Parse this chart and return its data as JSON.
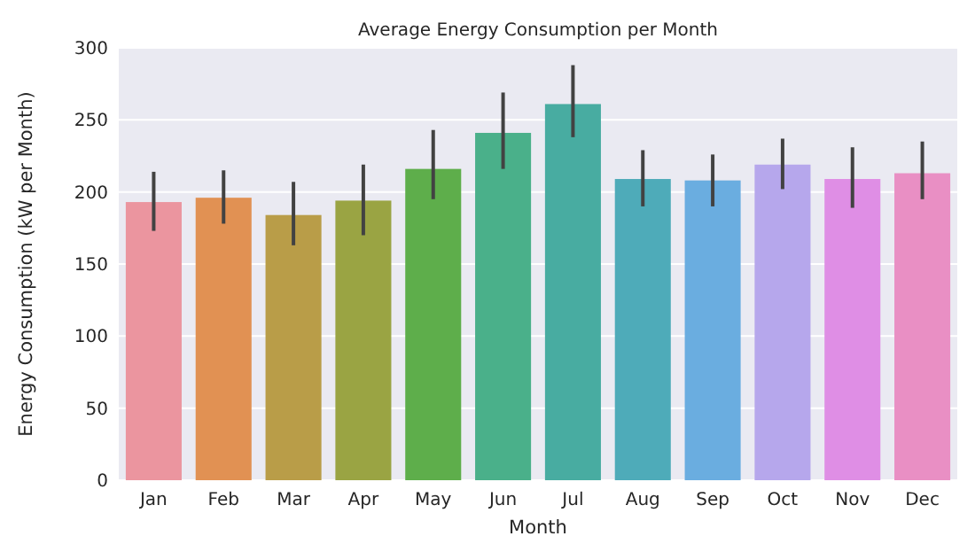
{
  "chart_data": {
    "type": "bar",
    "title": "Average Energy Consumption per Month",
    "xlabel": "Month",
    "ylabel": "Energy Consumption (kW per Month)",
    "categories": [
      "Jan",
      "Feb",
      "Mar",
      "Apr",
      "May",
      "Jun",
      "Jul",
      "Aug",
      "Sep",
      "Oct",
      "Nov",
      "Dec"
    ],
    "values": [
      193,
      196,
      184,
      194,
      216,
      241,
      261,
      209,
      208,
      219,
      209,
      213
    ],
    "errors": [
      [
        173,
        214
      ],
      [
        178,
        215
      ],
      [
        163,
        207
      ],
      [
        170,
        219
      ],
      [
        195,
        243
      ],
      [
        216,
        269
      ],
      [
        238,
        288
      ],
      [
        190,
        229
      ],
      [
        190,
        226
      ],
      [
        202,
        237
      ],
      [
        189,
        231
      ],
      [
        195,
        235
      ]
    ],
    "colors": [
      "#eb959f",
      "#e19153",
      "#b99d48",
      "#9aa443",
      "#5eae4b",
      "#4ab08a",
      "#48aca1",
      "#4eabb9",
      "#6aade0",
      "#b6a7ec",
      "#df8ee5",
      "#e98fc4"
    ],
    "ylim": [
      0,
      300
    ],
    "yticks": [
      0,
      50,
      100,
      150,
      200,
      250,
      300
    ],
    "grid": "y"
  }
}
